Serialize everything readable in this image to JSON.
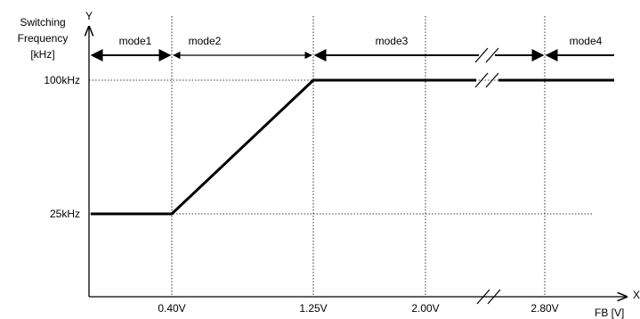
{
  "diagram": {
    "y_axis": {
      "letter": "Y",
      "title_lines": [
        "Switching",
        "Frequency",
        "[kHz]"
      ],
      "ticks": [
        "100kHz",
        "25kHz"
      ]
    },
    "x_axis": {
      "letter": "X",
      "title": "FB [V]",
      "ticks": [
        "0.40V",
        "1.25V",
        "2.00V",
        "2.80V"
      ]
    },
    "modes": [
      "mode1",
      "mode2",
      "mode3",
      "mode4"
    ]
  },
  "chart_data": {
    "type": "line",
    "title": "",
    "xlabel": "FB [V]",
    "ylabel": "Switching Frequency [kHz]",
    "x_ticks": [
      "0.40V",
      "1.25V",
      "2.00V",
      "2.80V"
    ],
    "y_ticks": [
      "25kHz",
      "100kHz"
    ],
    "series": [
      {
        "x": [
          0.0,
          0.4,
          1.25,
          2.0,
          2.8,
          3.3
        ],
        "y": [
          25,
          25,
          100,
          100,
          100,
          100
        ]
      }
    ],
    "regions": [
      {
        "label": "mode1",
        "from": 0.0,
        "to": 0.4
      },
      {
        "label": "mode2",
        "from": 0.4,
        "to": 1.25
      },
      {
        "label": "mode3",
        "from": 1.25,
        "to": 2.8
      },
      {
        "label": "mode4",
        "from": 2.8,
        "to": 3.3
      }
    ],
    "axis_breaks": [
      "between 2.00V and 2.80V"
    ]
  }
}
